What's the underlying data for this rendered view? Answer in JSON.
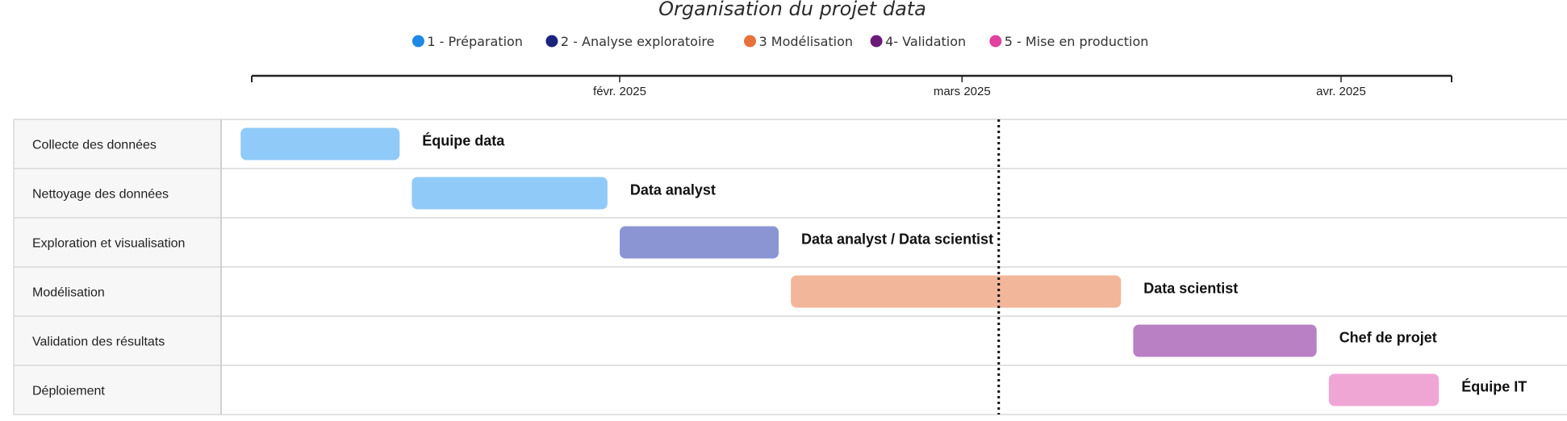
{
  "chart_data": {
    "type": "gantt",
    "title": "Organisation du projet data",
    "legend": [
      {
        "name": "1 - Préparation",
        "color": "#1e88e5"
      },
      {
        "name": "2 - Analyse exploratoire",
        "color": "#1a237e"
      },
      {
        "name": "3 Modélisation",
        "color": "#e8703a"
      },
      {
        "name": "4- Validation",
        "color": "#6a1b7a"
      },
      {
        "name": "5 - Mise en production",
        "color": "#e0429f"
      }
    ],
    "x_range": [
      "2025-01-01",
      "2025-04-10"
    ],
    "ticks": [
      {
        "date": "2025-02-01",
        "label": "févr. 2025"
      },
      {
        "date": "2025-03-01",
        "label": "mars 2025"
      },
      {
        "date": "2025-04-01",
        "label": "avr. 2025"
      }
    ],
    "today_line": "2025-03-04",
    "tasks": [
      {
        "name": "Collecte des données",
        "start": "2025-01-01",
        "end": "2025-01-14",
        "owner": "Équipe data",
        "phase": 0,
        "color": "#90caf9"
      },
      {
        "name": "Nettoyage des données",
        "start": "2025-01-15",
        "end": "2025-01-31",
        "owner": "Data analyst",
        "phase": 0,
        "color": "#90caf9"
      },
      {
        "name": "Exploration et visualisation",
        "start": "2025-02-01",
        "end": "2025-02-14",
        "owner": "Data analyst / Data scientist",
        "phase": 1,
        "color": "#8c95d4"
      },
      {
        "name": "Modélisation",
        "start": "2025-02-15",
        "end": "2025-03-14",
        "owner": "Data scientist",
        "phase": 2,
        "color": "#f2b69a"
      },
      {
        "name": "Validation des résultats",
        "start": "2025-03-15",
        "end": "2025-03-30",
        "owner": "Chef de projet",
        "phase": 3,
        "color": "#b980c4"
      },
      {
        "name": "Déploiement",
        "start": "2025-03-31",
        "end": "2025-04-09",
        "owner": "Équipe IT",
        "phase": 4,
        "color": "#f0a6d5"
      }
    ]
  }
}
